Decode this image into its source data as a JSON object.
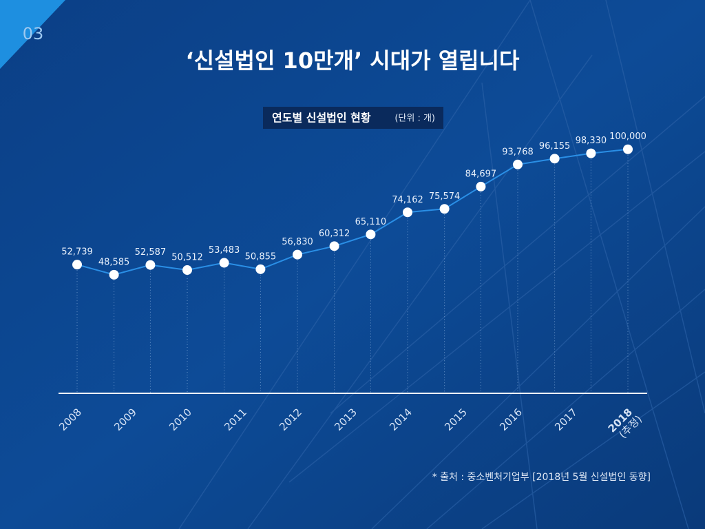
{
  "page_label": "03",
  "chart_data": {
    "type": "line",
    "title": "‘신설법인 10만개’ 시대가 열립니다",
    "subtitle": "연도별 신설법인 현황",
    "unit_note": "(단위 : 개)",
    "source": "* 출처 : 중소벤처기업부 [2018년 5월 신설법인 동향]",
    "annotation": "(추정)",
    "x": [
      2008,
      2008.67,
      2009.33,
      2010,
      2010.67,
      2011.33,
      2012,
      2012.67,
      2013.33,
      2014,
      2014.67,
      2015.33,
      2016,
      2016.67,
      2017.33,
      2018
    ],
    "series": [
      {
        "name": "신설법인",
        "color": "#2a8fe6",
        "values": [
          52739,
          48585,
          52587,
          50512,
          53483,
          50855,
          56830,
          60312,
          65110,
          74162,
          75574,
          84697,
          93768,
          96155,
          98330,
          100000
        ],
        "value_labels": [
          "52,739",
          "48,585",
          "52,587",
          "50,512",
          "53,483",
          "50,855",
          "56,830",
          "60,312",
          "65,110",
          "74,162",
          "75,574",
          "84,697",
          "93,768",
          "96,155",
          "98,330",
          "100,000"
        ]
      }
    ],
    "xlim": [
      2008,
      2018
    ],
    "xticks": [
      2008,
      2009,
      2010,
      2011,
      2012,
      2013,
      2014,
      2015,
      2016,
      2017,
      2018
    ],
    "ylim": [
      0,
      105000
    ]
  }
}
